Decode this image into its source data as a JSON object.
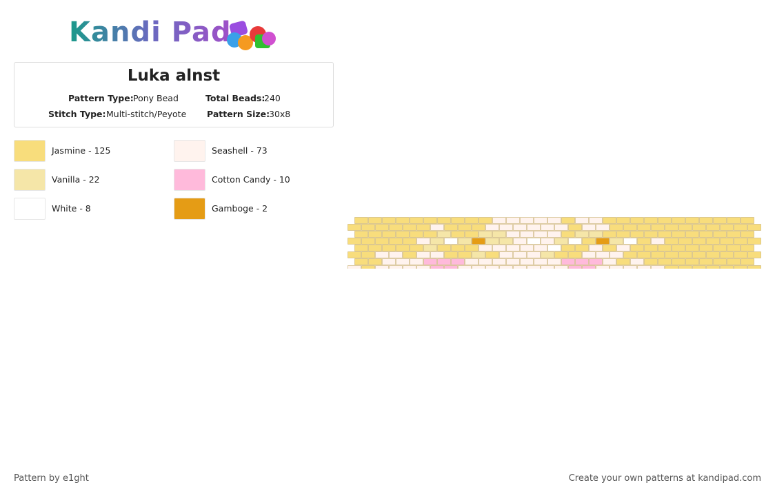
{
  "logo": "Kandi Pad",
  "title": "Luka alnst",
  "info": [
    {
      "label": "Pattern Type:",
      "value": "Pony Bead"
    },
    {
      "label": "Total Beads:",
      "value": "240"
    },
    {
      "label": "Stitch Type:",
      "value": "Multi-stitch/Peyote"
    },
    {
      "label": "Pattern Size:",
      "value": "30x8"
    }
  ],
  "legend": [
    {
      "label": "Jasmine - 125",
      "color": "#f8dd7c"
    },
    {
      "label": "Seashell - 73",
      "color": "#fff3ee"
    },
    {
      "label": "Vanilla - 22",
      "color": "#f5e6a8"
    },
    {
      "label": "Cotton Candy - 10",
      "color": "#ffbadb"
    },
    {
      "label": "White - 8",
      "color": "#ffffff"
    },
    {
      "label": "Gamboge - 2",
      "color": "#e59c15"
    }
  ],
  "footer": {
    "left": "Pattern by e1ght",
    "right": "Create your own patterns at kandipad.com"
  }
}
